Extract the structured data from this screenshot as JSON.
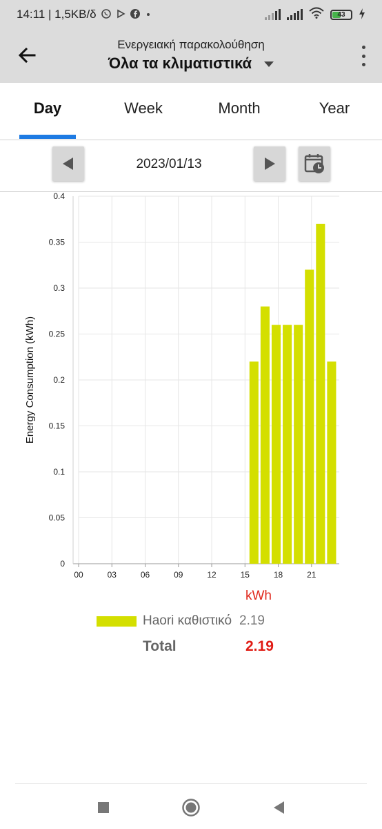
{
  "status_bar": {
    "time_net": "14:11 | 1,5KB/δ",
    "battery": "43",
    "icons": [
      "viber-icon",
      "play-icon",
      "facebook-icon",
      "dot-icon",
      "signal-icon",
      "signal-icon",
      "wifi-icon",
      "battery-icon",
      "charging-icon"
    ]
  },
  "app_bar": {
    "subtitle": "Ενεργειακή παρακολούθηση",
    "title": "Όλα τα κλιματιστικά",
    "icons": [
      "back-arrow-icon",
      "dropdown-icon",
      "more-vert-icon"
    ]
  },
  "tabs": [
    {
      "label": "Day",
      "active": true
    },
    {
      "label": "Week",
      "active": false
    },
    {
      "label": "Month",
      "active": false
    },
    {
      "label": "Year",
      "active": false
    }
  ],
  "date_nav": {
    "date": "2023/01/13",
    "icons": [
      "prev-icon",
      "next-icon",
      "calendar-clock-icon"
    ]
  },
  "chart_data": {
    "type": "bar",
    "ylabel": "Energy Consumption (kWh)",
    "ylim": [
      0,
      0.4
    ],
    "yticks": [
      "0",
      "0.05",
      "0.1",
      "0.15",
      "0.2",
      "0.25",
      "0.3",
      "0.35",
      "0.4"
    ],
    "xticks": [
      "00",
      "03",
      "06",
      "09",
      "12",
      "15",
      "18",
      "21"
    ],
    "x": [
      16,
      17,
      18,
      19,
      20,
      21,
      22,
      23
    ],
    "values": [
      0.22,
      0.28,
      0.26,
      0.26,
      0.26,
      0.32,
      0.37,
      0.22
    ],
    "bar_color": "#d4df00",
    "grid": true
  },
  "legend": {
    "unit": "kWh",
    "series_name": "Haori καθιστικό",
    "series_value": "2.19",
    "total_label": "Total",
    "total_value": "2.19",
    "total_color": "#e01b14"
  },
  "sys_nav": {
    "icons": [
      "recents-square-icon",
      "home-circle-icon",
      "back-triangle-icon"
    ]
  }
}
